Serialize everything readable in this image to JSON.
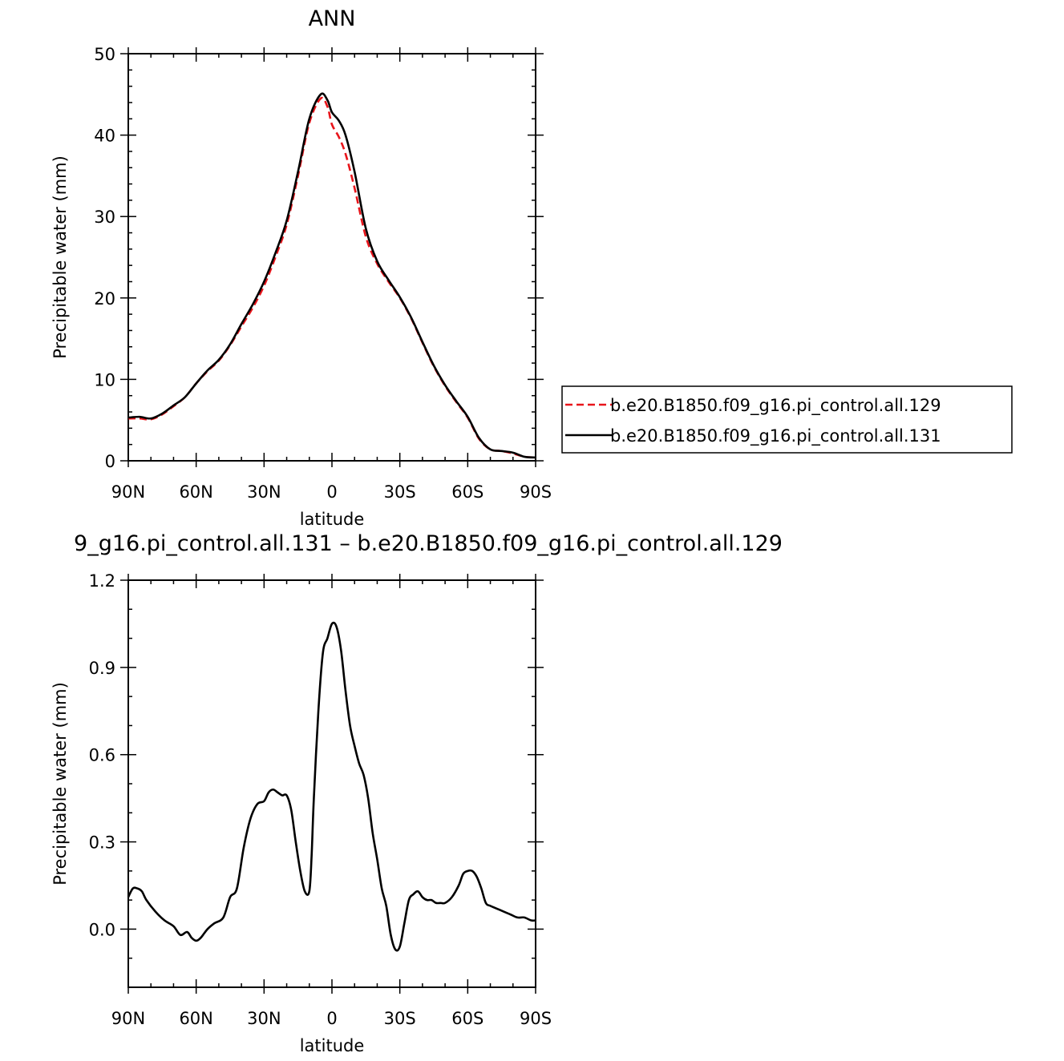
{
  "chart_data": [
    {
      "type": "line",
      "title": "ANN",
      "xlabel": "latitude",
      "ylabel": "Precipitable water (mm)",
      "xlim": [
        90,
        -90
      ],
      "ylim": [
        0,
        50
      ],
      "x_tick_values": [
        90,
        60,
        30,
        0,
        -30,
        -60,
        -90
      ],
      "x_tick_labels": [
        "90N",
        "60N",
        "30N",
        "0",
        "30S",
        "60S",
        "90S"
      ],
      "y_ticks": [
        0,
        10,
        20,
        30,
        40,
        50
      ],
      "grid": false,
      "legend": "right",
      "series": [
        {
          "name": "b.e20.B1850.f09_g16.pi_control.all.129",
          "color": "#e8151b",
          "dash": "dashed",
          "x": [
            90,
            85,
            80,
            75,
            70,
            65,
            60,
            55,
            50,
            45,
            40,
            35,
            30,
            25,
            20,
            15,
            10,
            5,
            2,
            0,
            -3,
            -6,
            -10,
            -15,
            -20,
            -25,
            -30,
            -35,
            -40,
            -45,
            -50,
            -55,
            -60,
            -65,
            -70,
            -75,
            -80,
            -85,
            -90
          ],
          "values": [
            5.2,
            5.2,
            5.1,
            5.7,
            6.7,
            7.8,
            9.5,
            11.0,
            12.3,
            14.2,
            16.5,
            18.8,
            21.5,
            25.0,
            29.0,
            35.0,
            41.5,
            44.5,
            43.5,
            41.3,
            39.8,
            37.7,
            33.5,
            27.5,
            24.2,
            22.0,
            20.0,
            17.5,
            14.5,
            11.6,
            9.2,
            7.2,
            5.3,
            2.7,
            1.4,
            1.2,
            0.9,
            0.5,
            0.4
          ]
        },
        {
          "name": "b.e20.B1850.f09_g16.pi_control.all.131",
          "color": "#000000",
          "dash": "solid",
          "x": [
            90,
            85,
            80,
            75,
            70,
            65,
            60,
            55,
            50,
            45,
            40,
            35,
            30,
            25,
            20,
            15,
            10,
            5,
            2,
            0,
            -3,
            -6,
            -10,
            -15,
            -20,
            -25,
            -30,
            -35,
            -40,
            -45,
            -50,
            -55,
            -60,
            -65,
            -70,
            -75,
            -80,
            -85,
            -90
          ],
          "values": [
            5.3,
            5.4,
            5.2,
            5.8,
            6.8,
            7.8,
            9.5,
            11.1,
            12.4,
            14.3,
            16.8,
            19.2,
            22.0,
            25.5,
            29.5,
            35.5,
            42.0,
            45.0,
            44.3,
            42.8,
            41.8,
            40.0,
            35.5,
            28.5,
            24.5,
            22.2,
            20.1,
            17.6,
            14.6,
            11.7,
            9.3,
            7.3,
            5.4,
            2.8,
            1.4,
            1.2,
            1.0,
            0.5,
            0.4
          ]
        }
      ]
    },
    {
      "type": "line",
      "title": "9_g16.pi_control.all.131 – b.e20.B1850.f09_g16.pi_control.all.129",
      "xlabel": "latitude",
      "ylabel": "Precipitable water (mm)",
      "xlim": [
        90,
        -90
      ],
      "ylim": [
        -0.2,
        1.2
      ],
      "x_tick_values": [
        90,
        60,
        30,
        0,
        -30,
        -60,
        -90
      ],
      "x_tick_labels": [
        "90N",
        "60N",
        "30N",
        "0",
        "30S",
        "60S",
        "90S"
      ],
      "y_ticks": [
        0.0,
        0.3,
        0.6,
        0.9,
        1.2
      ],
      "y_tick_labels": [
        "0.0",
        "0.3",
        "0.6",
        "0.9",
        "1.2"
      ],
      "grid": false,
      "series": [
        {
          "color": "#000000",
          "x": [
            90,
            88,
            86,
            84,
            82,
            78,
            74,
            70,
            67,
            64,
            62,
            60,
            58,
            55,
            52,
            48,
            45,
            42,
            39,
            36,
            33,
            30,
            28,
            26,
            24,
            22,
            20,
            18,
            16,
            14,
            12,
            10,
            9,
            8,
            6,
            4,
            2,
            0,
            -2,
            -4,
            -6,
            -8,
            -10,
            -12,
            -14,
            -16,
            -18,
            -20,
            -22,
            -24,
            -26,
            -28,
            -30,
            -32,
            -34,
            -36,
            -38,
            -40,
            -42,
            -44,
            -46,
            -48,
            -50,
            -53,
            -56,
            -58,
            -60,
            -62,
            -64,
            -66,
            -68,
            -70,
            -73,
            -76,
            -79,
            -82,
            -85,
            -88,
            -90
          ],
          "values": [
            0.11,
            0.14,
            0.14,
            0.13,
            0.1,
            0.06,
            0.03,
            0.01,
            -0.02,
            -0.01,
            -0.03,
            -0.04,
            -0.03,
            0.0,
            0.02,
            0.04,
            0.11,
            0.14,
            0.28,
            0.38,
            0.43,
            0.44,
            0.47,
            0.48,
            0.47,
            0.46,
            0.46,
            0.41,
            0.3,
            0.2,
            0.13,
            0.13,
            0.25,
            0.45,
            0.75,
            0.95,
            1.0,
            1.05,
            1.04,
            0.96,
            0.82,
            0.7,
            0.63,
            0.57,
            0.53,
            0.45,
            0.33,
            0.24,
            0.14,
            0.08,
            -0.02,
            -0.07,
            -0.06,
            0.02,
            0.1,
            0.12,
            0.13,
            0.11,
            0.1,
            0.1,
            0.09,
            0.09,
            0.09,
            0.11,
            0.15,
            0.19,
            0.2,
            0.2,
            0.18,
            0.14,
            0.09,
            0.08,
            0.07,
            0.06,
            0.05,
            0.04,
            0.04,
            0.03,
            0.03
          ]
        }
      ]
    }
  ]
}
